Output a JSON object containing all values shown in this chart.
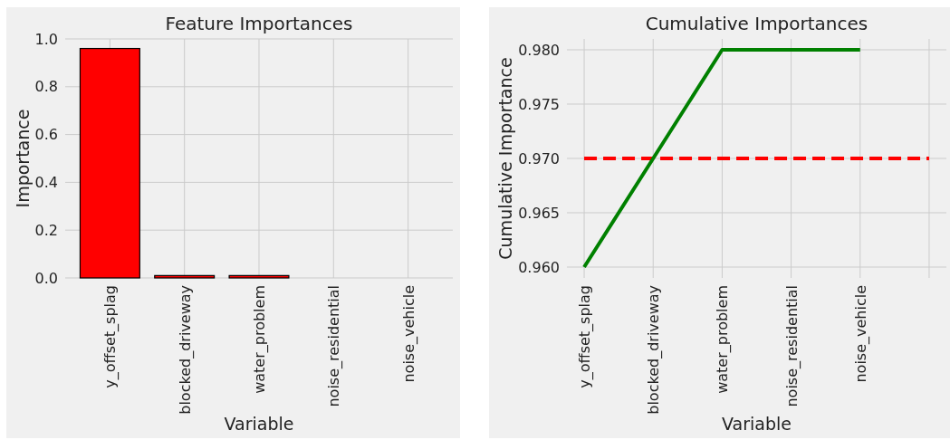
{
  "chart_data": [
    {
      "type": "bar",
      "title": "Feature Importances",
      "xlabel": "Variable",
      "ylabel": "Importance",
      "categories": [
        "y_offset_splag",
        "blocked_driveway",
        "water_problem",
        "noise_residential",
        "noise_vehicle"
      ],
      "values": [
        0.96,
        0.01,
        0.01,
        0,
        0
      ],
      "color": "#ff0000",
      "ylim": [
        0,
        1
      ],
      "yticks": [
        {
          "value": 0,
          "label": "0.0"
        },
        {
          "value": 0.2,
          "label": "0.2"
        },
        {
          "value": 0.4,
          "label": "0.4"
        },
        {
          "value": 0.6,
          "label": "0.6"
        },
        {
          "value": 0.8,
          "label": "0.8"
        },
        {
          "value": 1,
          "label": "1.0"
        }
      ],
      "grid": true
    },
    {
      "type": "line",
      "title": "Cumulative Importances",
      "xlabel": "Variable",
      "ylabel": "Cumulative Importance",
      "categories": [
        "y_offset_splag",
        "blocked_driveway",
        "water_problem",
        "noise_residential",
        "noise_vehicle",
        null
      ],
      "values": [
        0.96,
        0.97,
        0.98,
        0.98,
        0.98,
        null
      ],
      "color": "#008000",
      "ylim": [
        0.959,
        0.981
      ],
      "yticks": [
        {
          "value": 0.96,
          "label": "0.960"
        },
        {
          "value": 0.965,
          "label": "0.965"
        },
        {
          "value": 0.97,
          "label": "0.970"
        },
        {
          "value": 0.975,
          "label": "0.975"
        },
        {
          "value": 0.98,
          "label": "0.980"
        }
      ],
      "grid": true,
      "line_style": "solid",
      "marker": "none",
      "ref_lines": [
        {
          "axis": "y",
          "value": 0.97,
          "color": "#ff0000",
          "line_style": "dashed"
        }
      ]
    }
  ]
}
